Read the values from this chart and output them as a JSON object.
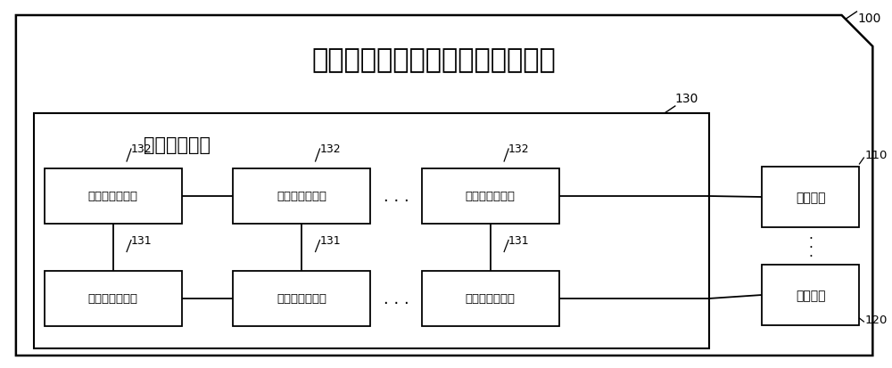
{
  "title": "用于输出双极性协同脉冲发生设备",
  "subtitle_inner": "脉冲发生电路",
  "bg_color": "#ffffff",
  "label_100": "100",
  "label_130": "130",
  "label_110": "110",
  "label_120": "120",
  "label_132": "132",
  "label_131": "131",
  "b2": "第二充放电模块",
  "b1": "第一充放电模块",
  "e1": "第一电极",
  "e2": "第二电极",
  "dots": ". . .",
  "edots": "·\n·\n·"
}
